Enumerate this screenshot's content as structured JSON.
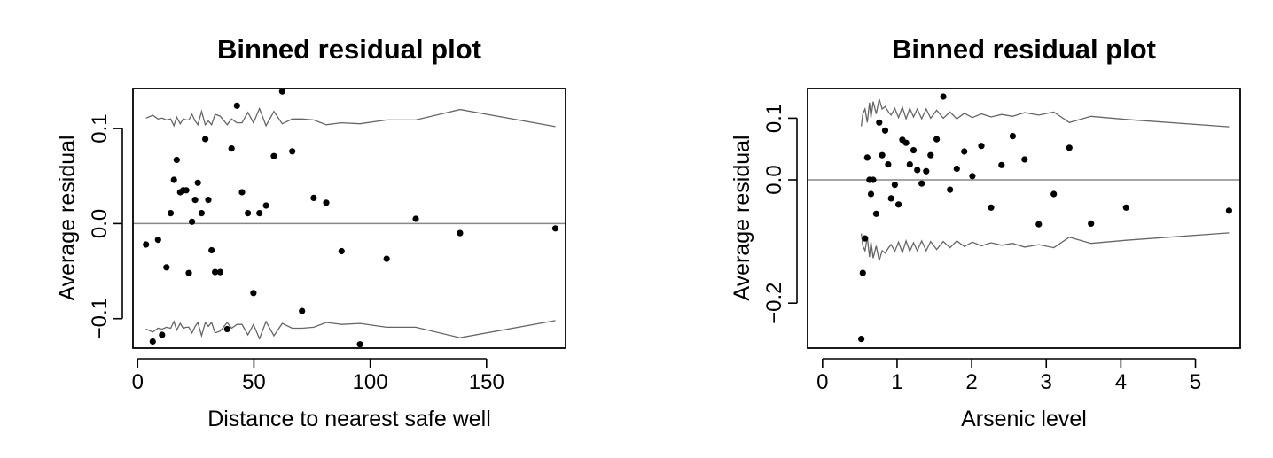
{
  "chart_data": [
    {
      "type": "scatter",
      "title": "Binned residual plot",
      "xlabel": "Distance to nearest safe well",
      "ylabel": "Average residual",
      "xlim": [
        -2,
        184
      ],
      "ylim": [
        -0.131,
        0.142
      ],
      "xticks": [
        {
          "value": 0,
          "label": "0"
        },
        {
          "value": 50,
          "label": "50"
        },
        {
          "value": 100,
          "label": "100"
        },
        {
          "value": 150,
          "label": "150"
        }
      ],
      "yticks": [
        {
          "value": -0.1,
          "label": "−0.1"
        },
        {
          "value": 0.0,
          "label": "0.0"
        },
        {
          "value": 0.1,
          "label": "0.1"
        }
      ],
      "reference_line": 0,
      "grid": false,
      "colors": {
        "points": "#000000",
        "bands": "#666666",
        "reference": "#888888"
      },
      "points": [
        [
          3.6,
          -0.022
        ],
        [
          6.5,
          -0.124
        ],
        [
          8.8,
          -0.017
        ],
        [
          10.5,
          -0.117
        ],
        [
          12.4,
          -0.046
        ],
        [
          14.2,
          0.011
        ],
        [
          15.6,
          0.046
        ],
        [
          16.8,
          0.067
        ],
        [
          18.3,
          0.033
        ],
        [
          19.6,
          0.035
        ],
        [
          20.9,
          0.035
        ],
        [
          22.0,
          -0.052
        ],
        [
          23.4,
          0.002
        ],
        [
          24.7,
          0.025
        ],
        [
          25.9,
          0.043
        ],
        [
          27.5,
          0.011
        ],
        [
          29.1,
          0.089
        ],
        [
          30.4,
          0.025
        ],
        [
          31.8,
          -0.028
        ],
        [
          33.3,
          -0.051
        ],
        [
          35.5,
          -0.051
        ],
        [
          38.5,
          -0.111
        ],
        [
          40.4,
          0.079
        ],
        [
          42.7,
          0.124
        ],
        [
          44.9,
          0.033
        ],
        [
          47.4,
          0.011
        ],
        [
          49.8,
          -0.073
        ],
        [
          52.4,
          0.011
        ],
        [
          55.2,
          0.019
        ],
        [
          58.6,
          0.071
        ],
        [
          62.2,
          0.139
        ],
        [
          66.5,
          0.076
        ],
        [
          70.7,
          -0.092
        ],
        [
          75.7,
          0.027
        ],
        [
          81.1,
          0.022
        ],
        [
          87.7,
          -0.029
        ],
        [
          95.6,
          -0.127
        ],
        [
          107.1,
          -0.037
        ],
        [
          119.6,
          0.005
        ],
        [
          138.6,
          -0.01
        ],
        [
          179.6,
          -0.005
        ]
      ],
      "upper_band": [
        [
          3.6,
          0.111
        ],
        [
          6.5,
          0.114
        ],
        [
          8.8,
          0.11
        ],
        [
          10.5,
          0.111
        ],
        [
          12.4,
          0.109
        ],
        [
          14.2,
          0.11
        ],
        [
          15.6,
          0.103
        ],
        [
          16.8,
          0.112
        ],
        [
          18.3,
          0.105
        ],
        [
          19.6,
          0.11
        ],
        [
          20.9,
          0.109
        ],
        [
          22.0,
          0.109
        ],
        [
          23.4,
          0.115
        ],
        [
          24.7,
          0.108
        ],
        [
          25.9,
          0.104
        ],
        [
          27.5,
          0.118
        ],
        [
          29.1,
          0.104
        ],
        [
          30.4,
          0.108
        ],
        [
          31.8,
          0.104
        ],
        [
          33.3,
          0.115
        ],
        [
          35.5,
          0.113
        ],
        [
          38.5,
          0.104
        ],
        [
          40.4,
          0.11
        ],
        [
          42.7,
          0.106
        ],
        [
          44.9,
          0.106
        ],
        [
          47.4,
          0.117
        ],
        [
          49.8,
          0.106
        ],
        [
          52.4,
          0.121
        ],
        [
          55.2,
          0.103
        ],
        [
          58.6,
          0.118
        ],
        [
          62.2,
          0.105
        ],
        [
          66.5,
          0.11
        ],
        [
          70.7,
          0.11
        ],
        [
          75.7,
          0.109
        ],
        [
          81.1,
          0.104
        ],
        [
          87.7,
          0.106
        ],
        [
          95.6,
          0.105
        ],
        [
          107.1,
          0.109
        ],
        [
          119.6,
          0.109
        ],
        [
          138.6,
          0.12
        ],
        [
          179.6,
          0.102
        ]
      ],
      "lower_band": [
        [
          3.6,
          -0.111
        ],
        [
          6.5,
          -0.114
        ],
        [
          8.8,
          -0.11
        ],
        [
          10.5,
          -0.111
        ],
        [
          12.4,
          -0.109
        ],
        [
          14.2,
          -0.11
        ],
        [
          15.6,
          -0.103
        ],
        [
          16.8,
          -0.112
        ],
        [
          18.3,
          -0.105
        ],
        [
          19.6,
          -0.11
        ],
        [
          20.9,
          -0.109
        ],
        [
          22.0,
          -0.109
        ],
        [
          23.4,
          -0.115
        ],
        [
          24.7,
          -0.108
        ],
        [
          25.9,
          -0.104
        ],
        [
          27.5,
          -0.118
        ],
        [
          29.1,
          -0.104
        ],
        [
          30.4,
          -0.108
        ],
        [
          31.8,
          -0.104
        ],
        [
          33.3,
          -0.115
        ],
        [
          35.5,
          -0.113
        ],
        [
          38.5,
          -0.104
        ],
        [
          40.4,
          -0.11
        ],
        [
          42.7,
          -0.106
        ],
        [
          44.9,
          -0.106
        ],
        [
          47.4,
          -0.117
        ],
        [
          49.8,
          -0.106
        ],
        [
          52.4,
          -0.121
        ],
        [
          55.2,
          -0.103
        ],
        [
          58.6,
          -0.118
        ],
        [
          62.2,
          -0.105
        ],
        [
          66.5,
          -0.11
        ],
        [
          70.7,
          -0.11
        ],
        [
          75.7,
          -0.109
        ],
        [
          81.1,
          -0.104
        ],
        [
          87.7,
          -0.106
        ],
        [
          95.6,
          -0.105
        ],
        [
          107.1,
          -0.109
        ],
        [
          119.6,
          -0.109
        ],
        [
          138.6,
          -0.12
        ],
        [
          179.6,
          -0.102
        ]
      ]
    },
    {
      "type": "scatter",
      "title": "Binned residual plot",
      "xlabel": "Arsenic level",
      "ylabel": "Average residual",
      "xlim": [
        -0.2,
        5.6
      ],
      "ylim": [
        -0.273,
        0.148
      ],
      "xticks": [
        {
          "value": 0,
          "label": "0"
        },
        {
          "value": 1,
          "label": "1"
        },
        {
          "value": 2,
          "label": "2"
        },
        {
          "value": 3,
          "label": "3"
        },
        {
          "value": 4,
          "label": "4"
        },
        {
          "value": 5,
          "label": "5"
        }
      ],
      "yticks": [
        {
          "value": -0.2,
          "label": "−0.2"
        },
        {
          "value": 0.0,
          "label": "0.0"
        },
        {
          "value": 0.1,
          "label": "0.1"
        }
      ],
      "reference_line": 0,
      "grid": false,
      "colors": {
        "points": "#000000",
        "bands": "#666666",
        "reference": "#888888"
      },
      "points": [
        [
          0.52,
          -0.258
        ],
        [
          0.54,
          -0.151
        ],
        [
          0.57,
          -0.095
        ],
        [
          0.6,
          0.036
        ],
        [
          0.63,
          0.0
        ],
        [
          0.65,
          -0.023
        ],
        [
          0.68,
          0.0
        ],
        [
          0.72,
          -0.055
        ],
        [
          0.76,
          0.093
        ],
        [
          0.8,
          0.04
        ],
        [
          0.84,
          0.08
        ],
        [
          0.88,
          0.025
        ],
        [
          0.92,
          -0.03
        ],
        [
          0.97,
          -0.008
        ],
        [
          1.02,
          -0.04
        ],
        [
          1.07,
          0.065
        ],
        [
          1.12,
          0.06
        ],
        [
          1.17,
          0.025
        ],
        [
          1.22,
          0.048
        ],
        [
          1.27,
          0.016
        ],
        [
          1.33,
          -0.006
        ],
        [
          1.39,
          0.014
        ],
        [
          1.45,
          0.04
        ],
        [
          1.53,
          0.066
        ],
        [
          1.62,
          0.135
        ],
        [
          1.71,
          -0.016
        ],
        [
          1.8,
          0.018
        ],
        [
          1.9,
          0.046
        ],
        [
          2.01,
          0.006
        ],
        [
          2.13,
          0.055
        ],
        [
          2.26,
          -0.045
        ],
        [
          2.4,
          0.024
        ],
        [
          2.55,
          0.071
        ],
        [
          2.71,
          0.033
        ],
        [
          2.9,
          -0.072
        ],
        [
          3.1,
          -0.023
        ],
        [
          3.31,
          0.052
        ],
        [
          3.6,
          -0.071
        ],
        [
          4.07,
          -0.045
        ],
        [
          5.45,
          -0.05
        ]
      ],
      "upper_band": [
        [
          0.52,
          0.087
        ],
        [
          0.54,
          0.107
        ],
        [
          0.57,
          0.115
        ],
        [
          0.6,
          0.093
        ],
        [
          0.63,
          0.125
        ],
        [
          0.65,
          0.101
        ],
        [
          0.68,
          0.127
        ],
        [
          0.72,
          0.107
        ],
        [
          0.76,
          0.131
        ],
        [
          0.8,
          0.115
        ],
        [
          0.84,
          0.119
        ],
        [
          0.88,
          0.111
        ],
        [
          0.92,
          0.105
        ],
        [
          0.97,
          0.116
        ],
        [
          1.02,
          0.101
        ],
        [
          1.07,
          0.118
        ],
        [
          1.12,
          0.099
        ],
        [
          1.17,
          0.116
        ],
        [
          1.22,
          0.102
        ],
        [
          1.27,
          0.115
        ],
        [
          1.33,
          0.099
        ],
        [
          1.39,
          0.115
        ],
        [
          1.45,
          0.1
        ],
        [
          1.53,
          0.113
        ],
        [
          1.62,
          0.1
        ],
        [
          1.71,
          0.11
        ],
        [
          1.8,
          0.099
        ],
        [
          1.9,
          0.108
        ],
        [
          2.01,
          0.101
        ],
        [
          2.13,
          0.107
        ],
        [
          2.26,
          0.102
        ],
        [
          2.4,
          0.106
        ],
        [
          2.55,
          0.103
        ],
        [
          2.71,
          0.109
        ],
        [
          2.9,
          0.105
        ],
        [
          3.1,
          0.11
        ],
        [
          3.31,
          0.093
        ],
        [
          3.6,
          0.103
        ],
        [
          4.07,
          0.098
        ],
        [
          5.45,
          0.086
        ]
      ],
      "lower_band": [
        [
          0.52,
          -0.087
        ],
        [
          0.54,
          -0.107
        ],
        [
          0.57,
          -0.115
        ],
        [
          0.6,
          -0.093
        ],
        [
          0.63,
          -0.125
        ],
        [
          0.65,
          -0.101
        ],
        [
          0.68,
          -0.127
        ],
        [
          0.72,
          -0.107
        ],
        [
          0.76,
          -0.131
        ],
        [
          0.8,
          -0.115
        ],
        [
          0.84,
          -0.119
        ],
        [
          0.88,
          -0.111
        ],
        [
          0.92,
          -0.105
        ],
        [
          0.97,
          -0.116
        ],
        [
          1.02,
          -0.101
        ],
        [
          1.07,
          -0.118
        ],
        [
          1.12,
          -0.099
        ],
        [
          1.17,
          -0.116
        ],
        [
          1.22,
          -0.102
        ],
        [
          1.27,
          -0.115
        ],
        [
          1.33,
          -0.099
        ],
        [
          1.39,
          -0.115
        ],
        [
          1.45,
          -0.1
        ],
        [
          1.53,
          -0.113
        ],
        [
          1.62,
          -0.1
        ],
        [
          1.71,
          -0.11
        ],
        [
          1.8,
          -0.099
        ],
        [
          1.9,
          -0.108
        ],
        [
          2.01,
          -0.101
        ],
        [
          2.13,
          -0.107
        ],
        [
          2.26,
          -0.102
        ],
        [
          2.4,
          -0.106
        ],
        [
          2.55,
          -0.103
        ],
        [
          2.71,
          -0.109
        ],
        [
          2.9,
          -0.105
        ],
        [
          3.1,
          -0.11
        ],
        [
          3.31,
          -0.093
        ],
        [
          3.6,
          -0.103
        ],
        [
          4.07,
          -0.098
        ],
        [
          5.45,
          -0.086
        ]
      ]
    }
  ]
}
